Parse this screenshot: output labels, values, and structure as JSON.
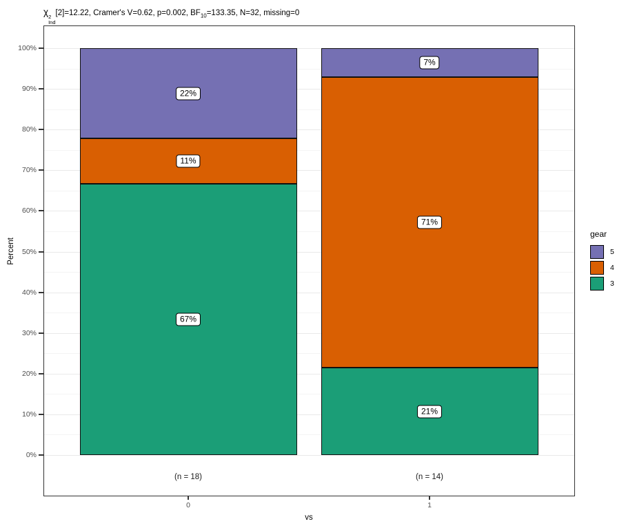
{
  "title": {
    "chi": "χ",
    "chi_sup": "2",
    "chi_sub": "Ind",
    "mid": "[2]=12.22, Cramer's V=0.62, p=0.002, BF",
    "bf_sub": "10",
    "tail": "=133.35, N=32, missing=0"
  },
  "axes": {
    "y_label": "Percent",
    "x_label": "vs",
    "y_tick_labels": [
      "0%",
      "10%",
      "20%",
      "30%",
      "40%",
      "50%",
      "60%",
      "70%",
      "80%",
      "90%",
      "100%"
    ],
    "x_tick_labels": [
      "0",
      "1"
    ]
  },
  "legend": {
    "title": "gear",
    "entries": [
      {
        "label": "5",
        "color": "#7570B3"
      },
      {
        "label": "4",
        "color": "#D95F02"
      },
      {
        "label": "3",
        "color": "#1B9E77"
      }
    ]
  },
  "chart_data": {
    "type": "bar",
    "variant": "stacked-percent-column",
    "title": "χ2Ind[2]=12.22, Cramer's V=0.62, p=0.002, BF10=133.35, N=32, missing=0",
    "xlabel": "vs",
    "ylabel": "Percent",
    "ylim": [
      0,
      100
    ],
    "grid": true,
    "legend_position": "right",
    "legend_title": "gear",
    "categories": [
      "0",
      "1"
    ],
    "category_counts": [
      18,
      14
    ],
    "count_labels": [
      "(n = 18)",
      "(n = 14)"
    ],
    "series": [
      {
        "name": "5",
        "color": "#7570B3",
        "values": [
          22.22,
          7.14
        ],
        "labels": [
          "22%",
          "7%"
        ]
      },
      {
        "name": "4",
        "color": "#D95F02",
        "values": [
          11.11,
          71.43
        ],
        "labels": [
          "11%",
          "71%"
        ]
      },
      {
        "name": "3",
        "color": "#1B9E77",
        "values": [
          66.67,
          21.43
        ],
        "labels": [
          "67%",
          "21%"
        ]
      }
    ],
    "stack_order_bottom_to_top": [
      "3",
      "4",
      "5"
    ]
  }
}
